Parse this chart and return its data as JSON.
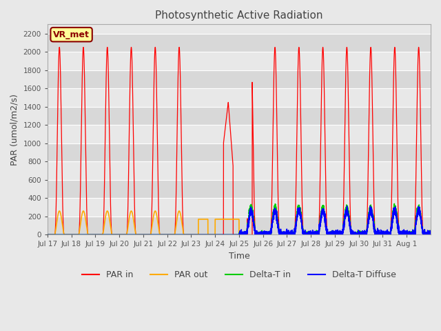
{
  "title": "Photosynthetic Active Radiation",
  "ylabel": "PAR (umol/m2/s)",
  "xlabel": "Time",
  "ylim": [
    0,
    2300
  ],
  "yticks": [
    0,
    200,
    400,
    600,
    800,
    1000,
    1200,
    1400,
    1600,
    1800,
    2000,
    2200
  ],
  "annotation": "VR_met",
  "annotation_color": "#8b0000",
  "annotation_bg": "#ffff99",
  "bg_color": "#e8e8e8",
  "legend_colors": [
    "#ff0000",
    "#ffaa00",
    "#00cc00",
    "#0000ff"
  ],
  "legend_labels": [
    "PAR in",
    "PAR out",
    "Delta-T in",
    "Delta-T Diffuse"
  ],
  "x_tick_labels": [
    "Jul 17",
    "Jul 18",
    "Jul 19",
    "Jul 20",
    "Jul 21",
    "Jul 22",
    "Jul 23",
    "Jul 24",
    "Jul 25",
    "Jul 26",
    "Jul 27",
    "Jul 28",
    "Jul 29",
    "Jul 30",
    "Jul 31",
    "Aug 1"
  ],
  "n_days": 16,
  "peak_par_in": 2050,
  "peak_par_out": 260
}
